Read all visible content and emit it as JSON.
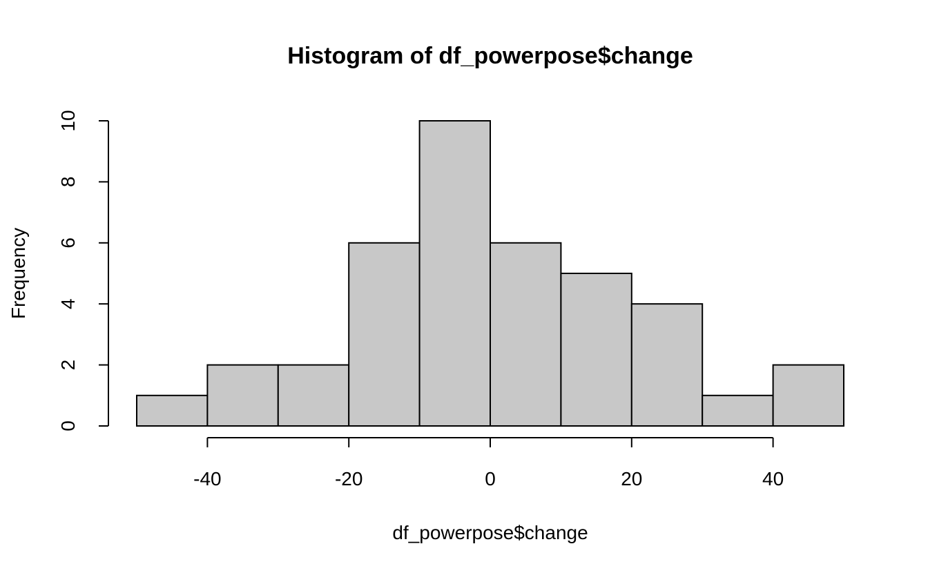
{
  "chart_data": {
    "type": "bar",
    "histogram": true,
    "title": "Histogram of df_powerpose$change",
    "xlabel": "df_powerpose$change",
    "ylabel": "Frequency",
    "bin_edges": [
      -50,
      -40,
      -30,
      -20,
      -10,
      0,
      10,
      20,
      30,
      40,
      50
    ],
    "values": [
      1,
      2,
      2,
      6,
      10,
      6,
      5,
      4,
      1,
      2
    ],
    "xlim": [
      -50,
      50
    ],
    "ylim": [
      0,
      10
    ],
    "x_ticks": [
      -40,
      -20,
      0,
      20,
      40
    ],
    "x_tick_labels": [
      "-40",
      "-20",
      "0",
      "20",
      "40"
    ],
    "y_ticks": [
      0,
      2,
      4,
      6,
      8,
      10
    ],
    "y_tick_labels": [
      "0",
      "2",
      "4",
      "6",
      "8",
      "10"
    ],
    "grid": false,
    "colors": {
      "bar_fill": "#c8c8c8",
      "bar_stroke": "#000000",
      "background": "#ffffff"
    }
  }
}
